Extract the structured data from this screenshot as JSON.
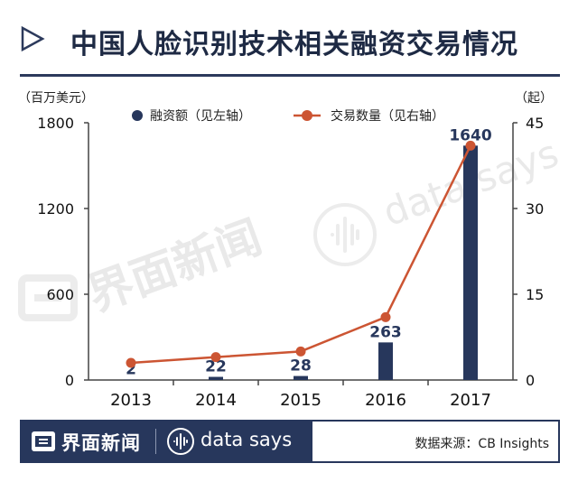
{
  "header": {
    "title": "中国人脸识别技术相关融资交易情况"
  },
  "watermark": {
    "brand": "界面新闻",
    "tagline": "data says"
  },
  "footer": {
    "brand": "界面新闻",
    "tagline": "data says",
    "source": "数据来源：CB Insights"
  },
  "colors": {
    "bar": "#27375c",
    "line": "#cc5533",
    "navy": "#1e2a44"
  },
  "chart_data": {
    "type": "bar+line",
    "categories": [
      "2013",
      "2014",
      "2015",
      "2016",
      "2017"
    ],
    "series": [
      {
        "name": "融资额（见左轴）",
        "type": "bar",
        "axis": "left",
        "values": [
          2,
          22,
          28,
          263,
          1640
        ]
      },
      {
        "name": "交易数量（见右轴）",
        "type": "line",
        "axis": "right",
        "values": [
          3,
          4,
          5,
          11,
          41
        ]
      }
    ],
    "data_labels": [
      "2",
      "22",
      "28",
      "263",
      "1640"
    ],
    "left_axis": {
      "label": "（百万美元）",
      "ticks": [
        0,
        600,
        1200,
        1800
      ],
      "tick_labels": [
        "0",
        "600",
        "1200",
        "1800"
      ],
      "range": [
        0,
        1800
      ]
    },
    "right_axis": {
      "label": "（起）",
      "ticks": [
        0,
        15,
        30,
        45
      ],
      "tick_labels": [
        "0",
        "15",
        "30",
        "45"
      ],
      "range": [
        0,
        45
      ]
    },
    "legend": [
      "融资额（见左轴）",
      "交易数量（见右轴）"
    ],
    "grid": false
  }
}
